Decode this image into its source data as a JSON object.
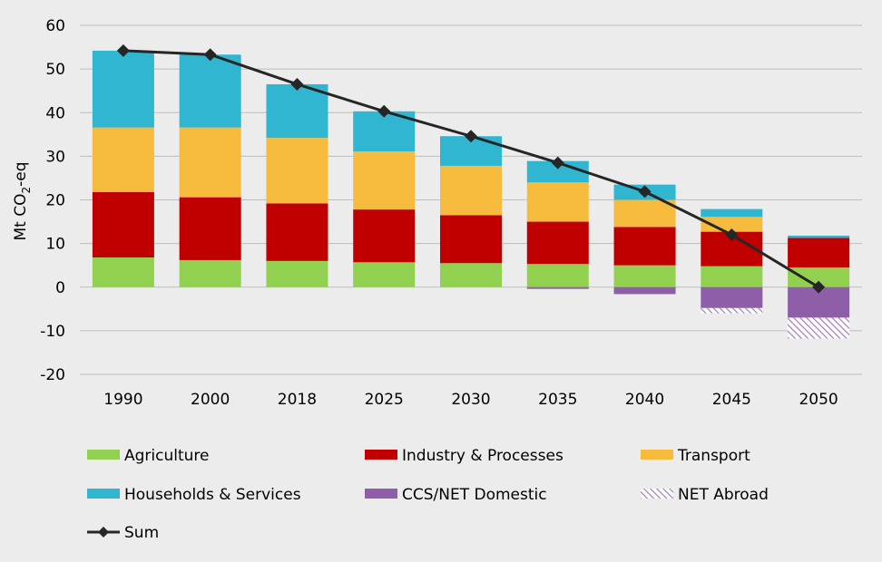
{
  "chart_data": {
    "type": "bar",
    "ylabel_main": "Mt CO",
    "ylabel_sub": "2",
    "ylabel_suffix": "-eq",
    "ylim": [
      -20,
      60
    ],
    "yticks": [
      "60",
      "50",
      "40",
      "30",
      "20",
      "10",
      "0",
      "-10",
      "-20"
    ],
    "ytick_values": [
      60,
      50,
      40,
      30,
      20,
      10,
      0,
      -10,
      -20
    ],
    "grid": true,
    "legend_position": "bottom",
    "categories": [
      "1990",
      "2000",
      "2018",
      "2025",
      "2030",
      "2035",
      "2040",
      "2045",
      "2050"
    ],
    "series": [
      {
        "name": "Agriculture",
        "color": "#92d050",
        "values": [
          6.8,
          6.2,
          6.0,
          5.7,
          5.5,
          5.3,
          5.0,
          4.8,
          4.5
        ]
      },
      {
        "name": "Industry & Processes",
        "color": "#c00000",
        "values": [
          15.0,
          14.4,
          13.2,
          12.1,
          11.0,
          9.7,
          8.8,
          7.9,
          6.8
        ]
      },
      {
        "name": "Transport",
        "color": "#f6bb3c",
        "values": [
          14.8,
          16.0,
          15.0,
          13.3,
          11.3,
          9.0,
          6.2,
          3.4,
          0.0
        ]
      },
      {
        "name": "Households & Services",
        "color": "#31b6d2",
        "values": [
          17.6,
          16.7,
          12.3,
          9.2,
          6.8,
          4.9,
          3.5,
          1.8,
          0.5
        ]
      },
      {
        "name": "CCS/NET Domestic",
        "color": "#8e5ea8",
        "values": [
          0,
          0,
          0,
          0,
          0,
          -0.4,
          -1.6,
          -4.8,
          -7.0
        ]
      },
      {
        "name": "NET Abroad",
        "color": "#c7a8d8",
        "values": [
          0,
          0,
          0,
          0,
          0,
          0,
          0,
          -1.2,
          -4.8
        ]
      }
    ],
    "line_series": {
      "name": "Sum",
      "color": "#262626",
      "values": [
        54.2,
        53.3,
        46.5,
        40.3,
        34.6,
        28.5,
        21.9,
        12.0,
        0.0
      ]
    }
  }
}
